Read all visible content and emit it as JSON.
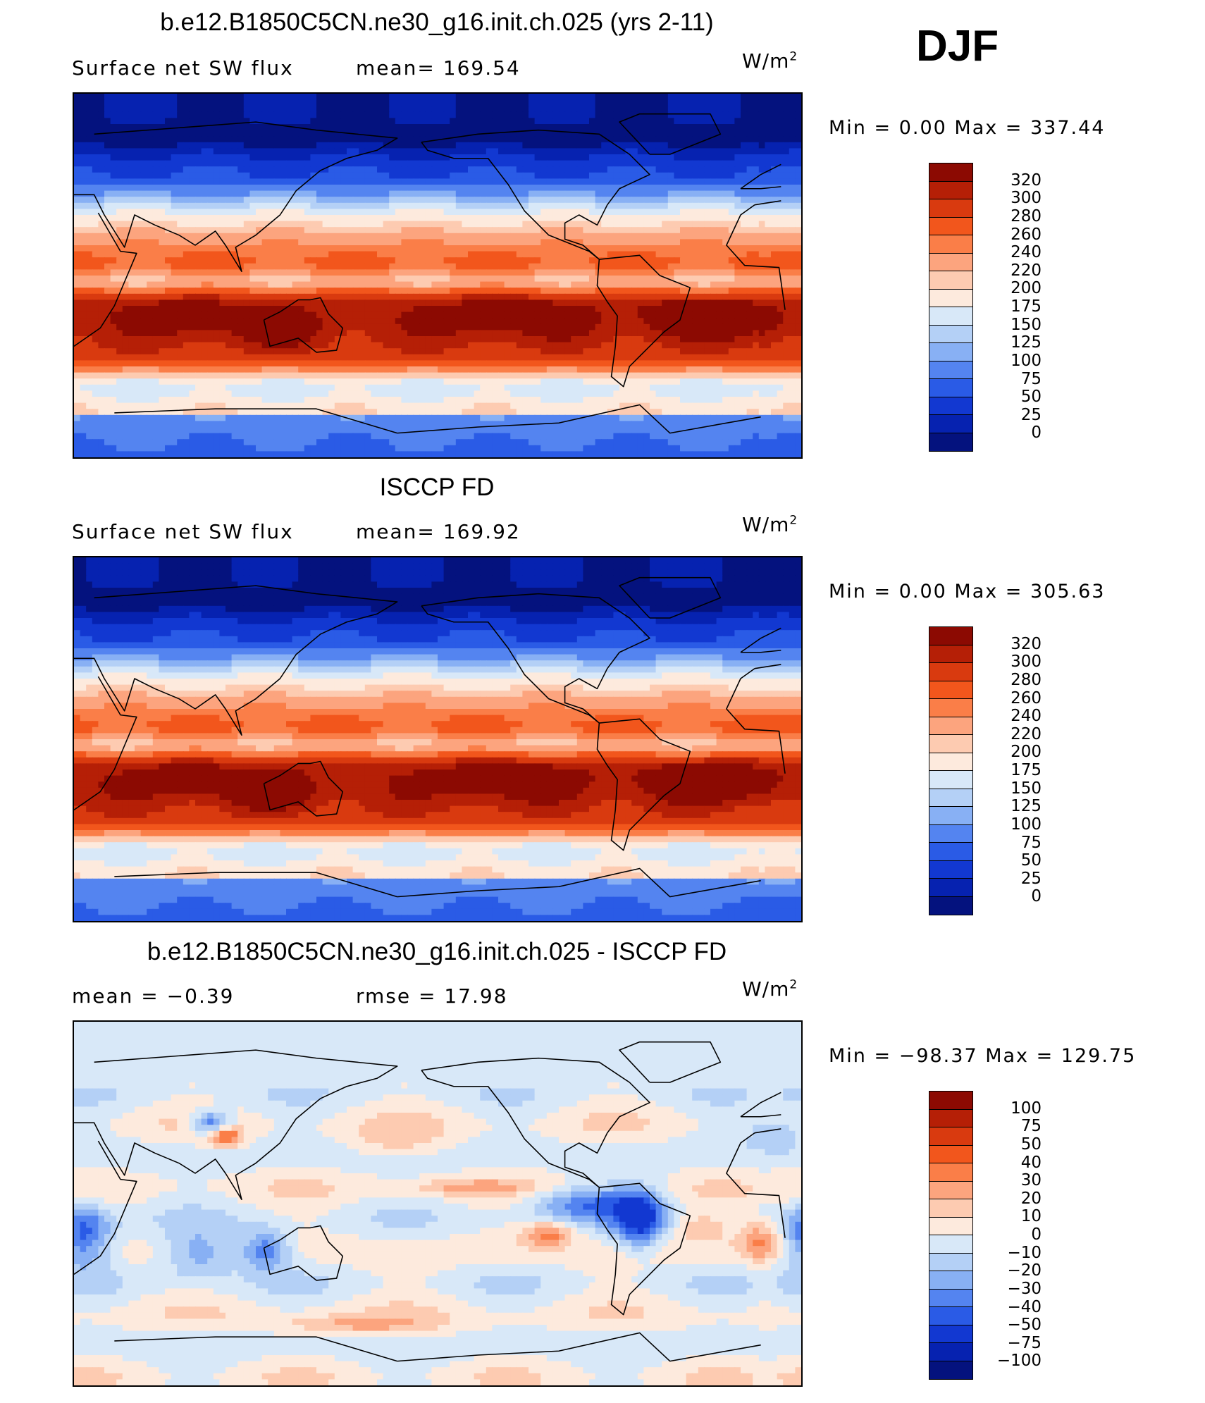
{
  "season": "DJF",
  "units_base": "W/m",
  "units_exp": "2",
  "panels": [
    {
      "title": "b.e12.B1850C5CN.ne30_g16.init.ch.025 (yrs 2-11)",
      "left_label": "Surface net SW flux",
      "right_label": "mean= 169.54",
      "minmax": "Min =     0.00 Max =  337.44",
      "levels": [
        "320",
        "300",
        "280",
        "260",
        "240",
        "220",
        "200",
        "175",
        "150",
        "125",
        "100",
        "75",
        "50",
        "25",
        "0"
      ],
      "colors": [
        "#8c0a02",
        "#b51f06",
        "#d93a0f",
        "#f2561c",
        "#fa7e48",
        "#fca47e",
        "#fdcbb1",
        "#fdeadd",
        "#d8e8f8",
        "#b4d0f6",
        "#88b0f4",
        "#5484f0",
        "#2a5be6",
        "#1238d1",
        "#0622b0",
        "#04127e"
      ],
      "field": "abs"
    },
    {
      "title": "ISCCP FD",
      "left_label": "Surface net SW flux",
      "right_label": "mean= 169.92",
      "minmax": "Min =     0.00 Max =  305.63",
      "levels": [
        "320",
        "300",
        "280",
        "260",
        "240",
        "220",
        "200",
        "175",
        "150",
        "125",
        "100",
        "75",
        "50",
        "25",
        "0"
      ],
      "colors": [
        "#8c0a02",
        "#b51f06",
        "#d93a0f",
        "#f2561c",
        "#fa7e48",
        "#fca47e",
        "#fdcbb1",
        "#fdeadd",
        "#d8e8f8",
        "#b4d0f6",
        "#88b0f4",
        "#5484f0",
        "#2a5be6",
        "#1238d1",
        "#0622b0",
        "#04127e"
      ],
      "field": "abs"
    },
    {
      "title": "b.e12.B1850C5CN.ne30_g16.init.ch.025 - ISCCP FD",
      "left_label": "mean =   −0.39",
      "right_label": "rmse =   17.98",
      "minmax": "Min = −98.37 Max =  129.75",
      "levels": [
        "100",
        "75",
        "50",
        "40",
        "30",
        "20",
        "10",
        "0",
        "−10",
        "−20",
        "−30",
        "−40",
        "−50",
        "−75",
        "−100"
      ],
      "colors": [
        "#8c0a02",
        "#b51f06",
        "#d93a0f",
        "#f2561c",
        "#fa7e48",
        "#fca47e",
        "#fdcbb1",
        "#fdeadd",
        "#d8e8f8",
        "#b4d0f6",
        "#88b0f4",
        "#5484f0",
        "#2a5be6",
        "#1238d1",
        "#0622b0",
        "#04127e"
      ],
      "field": "diff"
    }
  ]
}
